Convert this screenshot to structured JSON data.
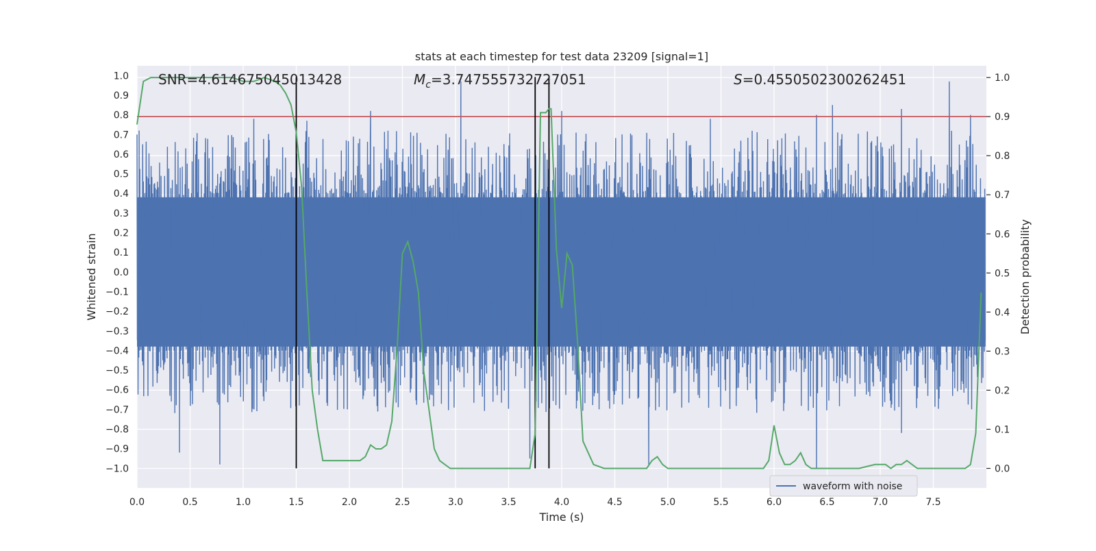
{
  "chart_data": {
    "type": "line",
    "title": "stats at each timestep for test data 23209 [signal=1]",
    "xlabel": "Time (s)",
    "ylabel": "Whitened strain",
    "ylabel_right": "Detection probability",
    "xlim": [
      0.0,
      8.0
    ],
    "ylim": [
      -1.1,
      1.05
    ],
    "ylim_right": [
      -0.05,
      1.03
    ],
    "x_ticks": [
      "0.0",
      "0.5",
      "1.0",
      "1.5",
      "2.0",
      "2.5",
      "3.0",
      "3.5",
      "4.0",
      "4.5",
      "5.0",
      "5.5",
      "6.0",
      "6.5",
      "7.0",
      "7.5"
    ],
    "y_ticks": [
      "1.0",
      "0.9",
      "0.8",
      "0.7",
      "0.6",
      "0.5",
      "0.4",
      "0.3",
      "0.2",
      "0.1",
      "0.0",
      "-0.1",
      "-0.2",
      "-0.3",
      "-0.4",
      "-0.5",
      "-0.6",
      "-0.7",
      "-0.8",
      "-0.9",
      "-1.0"
    ],
    "y_ticks_right": [
      "1.0",
      "0.9",
      "0.8",
      "0.7",
      "0.6",
      "0.5",
      "0.4",
      "0.3",
      "0.2",
      "0.1",
      "0.0"
    ],
    "annotations": {
      "snr": "SNR=4.614675045013428",
      "mc_symbol": "M",
      "mc_sub": "c",
      "mc_value": "=3.747555732727051",
      "s_symbol": "S",
      "s_value": "=0.4550502300262451"
    },
    "legend": [
      {
        "name": "waveform with noise",
        "color": "#4c72b0"
      }
    ],
    "threshold_line": {
      "value_right_axis": 0.9,
      "color": "#c44e52"
    },
    "vertical_lines": [
      1.5,
      3.75,
      3.88
    ],
    "waveform": {
      "name": "waveform with noise",
      "color": "#4c72b0",
      "core_amplitude": 0.4,
      "typical_peak_max": 0.6,
      "max_spikes_upper": [
        {
          "t": 0.02,
          "v": 0.72
        },
        {
          "t": 1.1,
          "v": 0.78
        },
        {
          "t": 1.6,
          "v": 0.77
        },
        {
          "t": 2.2,
          "v": 0.82
        },
        {
          "t": 3.05,
          "v": 0.97
        },
        {
          "t": 4.0,
          "v": 0.82
        },
        {
          "t": 5.4,
          "v": 0.78
        },
        {
          "t": 6.4,
          "v": 0.8
        },
        {
          "t": 6.55,
          "v": 0.85
        },
        {
          "t": 7.2,
          "v": 0.83
        },
        {
          "t": 7.65,
          "v": 0.97
        },
        {
          "t": 7.85,
          "v": 0.8
        }
      ],
      "max_spikes_lower": [
        {
          "t": 0.4,
          "v": -0.92
        },
        {
          "t": 0.78,
          "v": -0.98
        },
        {
          "t": 3.7,
          "v": -0.95
        },
        {
          "t": 4.82,
          "v": -0.99
        },
        {
          "t": 6.4,
          "v": -1.0
        },
        {
          "t": 7.2,
          "v": -0.82
        }
      ]
    },
    "probability": {
      "name": "Detection probability",
      "color": "#55a868",
      "x": [
        0.0,
        0.06,
        0.13,
        0.3,
        0.5,
        0.7,
        0.9,
        1.0,
        1.1,
        1.2,
        1.3,
        1.35,
        1.4,
        1.45,
        1.5,
        1.55,
        1.6,
        1.65,
        1.7,
        1.75,
        1.8,
        1.9,
        2.0,
        2.05,
        2.1,
        2.15,
        2.2,
        2.25,
        2.3,
        2.35,
        2.4,
        2.45,
        2.5,
        2.55,
        2.6,
        2.65,
        2.7,
        2.75,
        2.8,
        2.85,
        2.9,
        2.95,
        3.0,
        3.1,
        3.2,
        3.3,
        3.4,
        3.5,
        3.6,
        3.65,
        3.7,
        3.75,
        3.8,
        3.85,
        3.88,
        3.9,
        3.95,
        4.0,
        4.05,
        4.1,
        4.15,
        4.2,
        4.3,
        4.4,
        4.5,
        4.6,
        4.7,
        4.8,
        4.85,
        4.9,
        4.95,
        5.0,
        5.2,
        5.4,
        5.6,
        5.8,
        5.9,
        5.95,
        6.0,
        6.05,
        6.1,
        6.15,
        6.2,
        6.25,
        6.3,
        6.35,
        6.4,
        6.6,
        6.8,
        6.95,
        7.0,
        7.05,
        7.1,
        7.15,
        7.2,
        7.25,
        7.3,
        7.35,
        7.4,
        7.6,
        7.7,
        7.8,
        7.85,
        7.9,
        7.95
      ],
      "values": [
        0.88,
        0.99,
        1.0,
        1.0,
        1.0,
        1.0,
        1.0,
        0.99,
        0.99,
        1.0,
        0.99,
        0.98,
        0.96,
        0.93,
        0.86,
        0.72,
        0.45,
        0.2,
        0.1,
        0.02,
        0.02,
        0.02,
        0.02,
        0.02,
        0.02,
        0.03,
        0.06,
        0.05,
        0.05,
        0.06,
        0.12,
        0.31,
        0.55,
        0.58,
        0.53,
        0.45,
        0.25,
        0.15,
        0.05,
        0.02,
        0.01,
        0.0,
        0.0,
        0.0,
        0.0,
        0.0,
        0.0,
        0.0,
        0.0,
        0.0,
        0.0,
        0.09,
        0.91,
        0.91,
        0.92,
        0.92,
        0.56,
        0.41,
        0.55,
        0.52,
        0.32,
        0.07,
        0.01,
        0.0,
        0.0,
        0.0,
        0.0,
        0.0,
        0.02,
        0.03,
        0.01,
        0.0,
        0.0,
        0.0,
        0.0,
        0.0,
        0.0,
        0.02,
        0.11,
        0.04,
        0.01,
        0.01,
        0.02,
        0.04,
        0.01,
        0.0,
        0.0,
        0.0,
        0.0,
        0.01,
        0.01,
        0.01,
        0.0,
        0.01,
        0.01,
        0.02,
        0.01,
        0.0,
        0.0,
        0.0,
        0.0,
        0.0,
        0.01,
        0.09,
        0.45
      ]
    }
  }
}
